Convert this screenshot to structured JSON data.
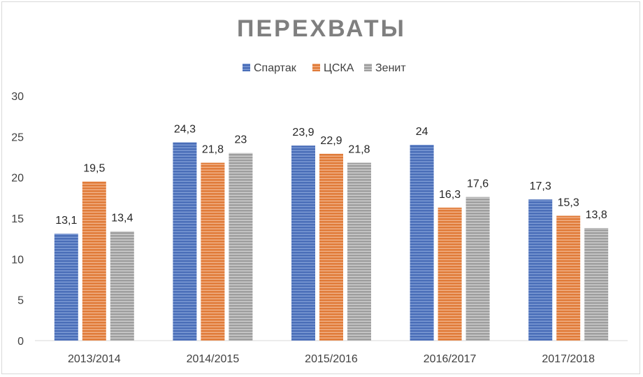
{
  "chart_data": {
    "type": "bar",
    "title": "ПЕРЕХВАТЫ",
    "categories": [
      "2013/2014",
      "2014/2015",
      "2015/2016",
      "2016/2017",
      "2017/2018"
    ],
    "series": [
      {
        "name": "Спартак",
        "values": [
          13.1,
          24.3,
          23.9,
          24,
          17.3
        ],
        "labels": [
          "13,1",
          "24,3",
          "23,9",
          "24",
          "17,3"
        ],
        "color": "#4a6eb8",
        "stripe": "#7f9dd6"
      },
      {
        "name": "ЦСКА",
        "values": [
          19.5,
          21.8,
          22.9,
          16.3,
          15.3
        ],
        "labels": [
          "19,5",
          "21,8",
          "22,9",
          "16,3",
          "15,3"
        ],
        "color": "#e07b39",
        "stripe": "#f2b38a"
      },
      {
        "name": "Зенит",
        "values": [
          13.4,
          23,
          21.8,
          17.6,
          13.8
        ],
        "labels": [
          "13,4",
          "23",
          "21,8",
          "17,6",
          "13,8"
        ],
        "color": "#9e9e9e",
        "stripe": "#d0d0d0"
      }
    ],
    "ylim": [
      0,
      30
    ],
    "yticks": [
      0,
      5,
      10,
      15,
      20,
      25,
      30
    ],
    "grid": false,
    "legend": "top-center",
    "xlabel": "",
    "ylabel": ""
  }
}
